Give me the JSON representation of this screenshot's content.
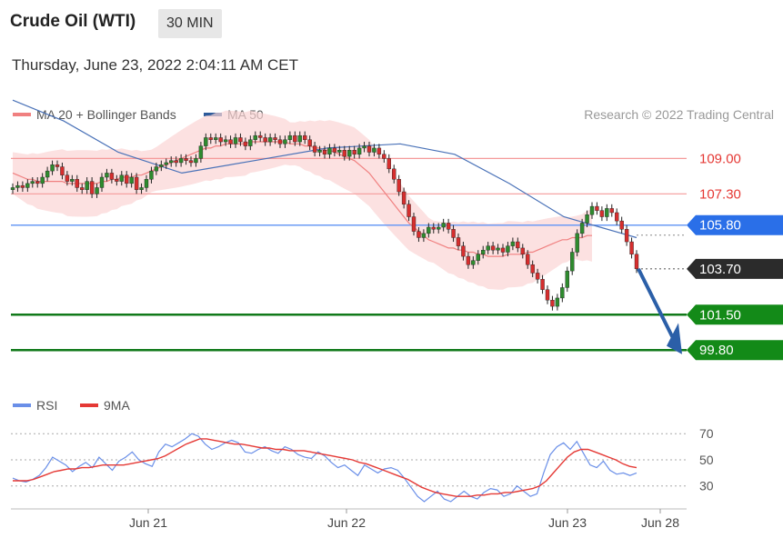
{
  "header": {
    "title": "Crude Oil (WTI)",
    "timeframe": "30 MIN",
    "datetime": "Thursday, June 23, 2022 2:04:11 AM CET"
  },
  "legend": {
    "price": [
      {
        "label": "MA 20 + Bollinger Bands",
        "color": "#f08080"
      },
      {
        "label": "MA 50",
        "color": "#2c5a9a"
      }
    ],
    "rsi": [
      {
        "label": "RSI",
        "color": "#6a8fe8"
      },
      {
        "label": "9MA",
        "color": "#e53935"
      }
    ],
    "credit": "Research © 2022 Trading Central"
  },
  "chart_data": [
    {
      "type": "candlestick",
      "yrange": [
        98.5,
        110.5
      ],
      "levels": [
        {
          "value": 109.0,
          "label": "109.00",
          "kind": "resistance"
        },
        {
          "value": 107.3,
          "label": "107.30",
          "kind": "resistance"
        },
        {
          "value": 105.8,
          "label": "105.80",
          "kind": "pivot"
        },
        {
          "value": 103.7,
          "label": "103.70",
          "kind": "last"
        },
        {
          "value": 101.5,
          "label": "101.50",
          "kind": "support"
        },
        {
          "value": 99.8,
          "label": "99.80",
          "kind": "support"
        }
      ],
      "close": [
        107.6,
        107.7,
        107.6,
        107.8,
        107.9,
        107.8,
        108.1,
        108.4,
        108.7,
        108.6,
        108.2,
        107.9,
        108.0,
        107.6,
        107.5,
        107.9,
        107.3,
        107.6,
        108.1,
        108.3,
        108.0,
        107.9,
        108.2,
        107.8,
        108.1,
        107.5,
        107.6,
        108.0,
        108.4,
        108.6,
        108.7,
        108.8,
        108.9,
        108.8,
        109.0,
        108.9,
        108.8,
        109.0,
        109.6,
        110.0,
        109.9,
        110.0,
        109.8,
        109.9,
        109.7,
        110.0,
        109.8,
        109.6,
        109.9,
        110.1,
        110.0,
        109.8,
        110.0,
        109.9,
        109.7,
        109.9,
        110.1,
        109.8,
        110.1,
        109.9,
        109.6,
        109.3,
        109.4,
        109.2,
        109.5,
        109.3,
        109.4,
        109.1,
        109.4,
        109.2,
        109.5,
        109.6,
        109.3,
        109.5,
        109.2,
        109.0,
        108.5,
        108.0,
        107.4,
        106.8,
        106.2,
        105.5,
        105.2,
        105.4,
        105.7,
        105.6,
        105.7,
        105.9,
        105.6,
        105.2,
        104.8,
        104.3,
        103.9,
        104.1,
        104.4,
        104.6,
        104.8,
        104.6,
        104.7,
        104.5,
        104.8,
        105.0,
        104.7,
        104.4,
        103.9,
        103.5,
        103.2,
        102.7,
        102.2,
        101.9,
        102.3,
        102.8,
        103.6,
        104.5,
        105.4,
        105.9,
        106.3,
        106.7,
        106.5,
        106.2,
        106.6,
        106.4,
        106.0,
        105.6,
        105.0,
        104.4,
        103.7
      ],
      "ma20": [
        108.3,
        108.2,
        108.1,
        108.0,
        108.0,
        107.9,
        107.9,
        107.9,
        107.9,
        107.9,
        107.9,
        107.8,
        107.8,
        107.8,
        107.8,
        107.8,
        107.8,
        107.8,
        107.9,
        107.9,
        108.0,
        108.0,
        108.1,
        108.1,
        108.1,
        108.2,
        108.2,
        108.3,
        108.4,
        108.5,
        108.6,
        108.7,
        108.8,
        108.9,
        109.0,
        109.1,
        109.2,
        109.3,
        109.4,
        109.5,
        109.5,
        109.6,
        109.6,
        109.7,
        109.7,
        109.7,
        109.7,
        109.7,
        109.8,
        109.8,
        109.8,
        109.8,
        109.8,
        109.8,
        109.8,
        109.8,
        109.7,
        109.7,
        109.7,
        109.6,
        109.6,
        109.5,
        109.5,
        109.4,
        109.4,
        109.3,
        109.2,
        109.1,
        109.0,
        108.9,
        108.7,
        108.5,
        108.3,
        108.0,
        107.7,
        107.4,
        107.1,
        106.8,
        106.5,
        106.2,
        105.9,
        105.7,
        105.5,
        105.3,
        105.1,
        105.0,
        104.9,
        104.8,
        104.7,
        104.7,
        104.6,
        104.6,
        104.5,
        104.5,
        104.4,
        104.4,
        104.3,
        104.3,
        104.3,
        104.3,
        104.4,
        104.4,
        104.4,
        104.4,
        104.5,
        104.5,
        104.6,
        104.7,
        104.8,
        104.9,
        105.0,
        105.1,
        105.1,
        105.2,
        105.2,
        105.2,
        105.3,
        105.3
      ]
    },
    {
      "type": "line",
      "title": "RSI",
      "levels": [
        70,
        50,
        30
      ],
      "yrange": [
        18,
        75
      ],
      "x_ticks": [
        "Jun 21",
        "Jun 22",
        "Jun 23",
        "Jun 28"
      ],
      "rsi": [
        36,
        34,
        33,
        35,
        38,
        44,
        52,
        49,
        46,
        41,
        45,
        48,
        44,
        52,
        47,
        42,
        49,
        52,
        56,
        50,
        47,
        45,
        56,
        62,
        60,
        63,
        66,
        70,
        68,
        62,
        58,
        60,
        63,
        65,
        63,
        56,
        55,
        58,
        60,
        57,
        55,
        60,
        58,
        54,
        52,
        51,
        56,
        53,
        48,
        44,
        46,
        42,
        38,
        46,
        43,
        40,
        43,
        44,
        42,
        36,
        29,
        22,
        18,
        22,
        26,
        20,
        18,
        22,
        26,
        22,
        20,
        25,
        28,
        27,
        22,
        24,
        30,
        26,
        22,
        24,
        40,
        54,
        60,
        63,
        58,
        64,
        55,
        46,
        44,
        49,
        42,
        39,
        40,
        38,
        40
      ],
      "rsi_ma": [
        34,
        34,
        34,
        35,
        37,
        39,
        41,
        42,
        43,
        43,
        44,
        44,
        45,
        46,
        46,
        46,
        46,
        47,
        48,
        49,
        50,
        51,
        53,
        56,
        59,
        62,
        64,
        66,
        66,
        65,
        64,
        63,
        62,
        62,
        61,
        60,
        59,
        59,
        58,
        58,
        57,
        57,
        57,
        56,
        55,
        54,
        53,
        52,
        51,
        50,
        48,
        47,
        45,
        43,
        41,
        39,
        37,
        35,
        32,
        29,
        27,
        25,
        24,
        23,
        22,
        22,
        22,
        23,
        23,
        24,
        24,
        25,
        25,
        26,
        27,
        28,
        30,
        34,
        40,
        46,
        52,
        56,
        58,
        58,
        56,
        54,
        52,
        50,
        47,
        45,
        44
      ]
    }
  ]
}
